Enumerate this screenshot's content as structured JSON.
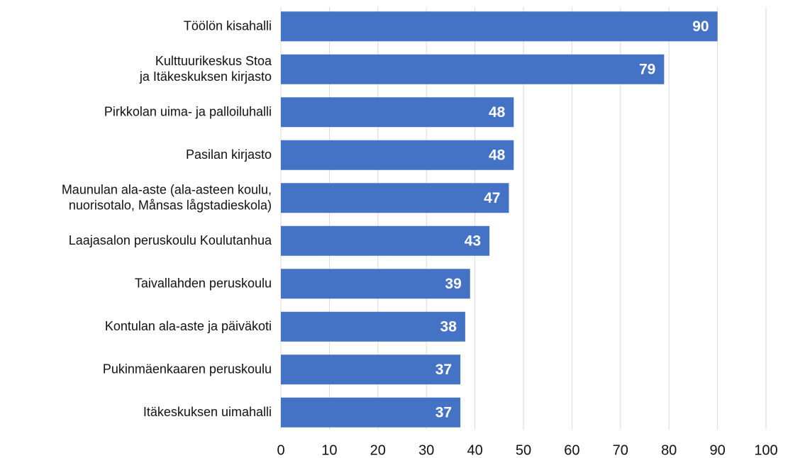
{
  "chart_data": {
    "type": "bar",
    "orientation": "horizontal",
    "categories": [
      "Töölön kisahalli",
      "Kulttuurikeskus Stoa\nja Itäkeskuksen kirjasto",
      "Pirkkolan uima- ja palloiluhalli",
      "Pasilan kirjasto",
      "Maunulan ala-aste (ala-asteen koulu,\nnuorisotalo, Månsas lågstadieskola)",
      "Laajasalon peruskoulu Koulutanhua",
      "Taivallahden peruskoulu",
      "Kontulan ala-aste ja päiväkoti",
      "Pukinmäenkaaren peruskoulu",
      "Itäkeskuksen uimahalli"
    ],
    "values": [
      90,
      79,
      48,
      48,
      47,
      43,
      39,
      38,
      37,
      37
    ],
    "color": "#4472c4",
    "xlim": [
      0,
      100
    ],
    "xticks": [
      0,
      10,
      20,
      30,
      40,
      50,
      60,
      70,
      80,
      90,
      100
    ],
    "grid": true
  }
}
